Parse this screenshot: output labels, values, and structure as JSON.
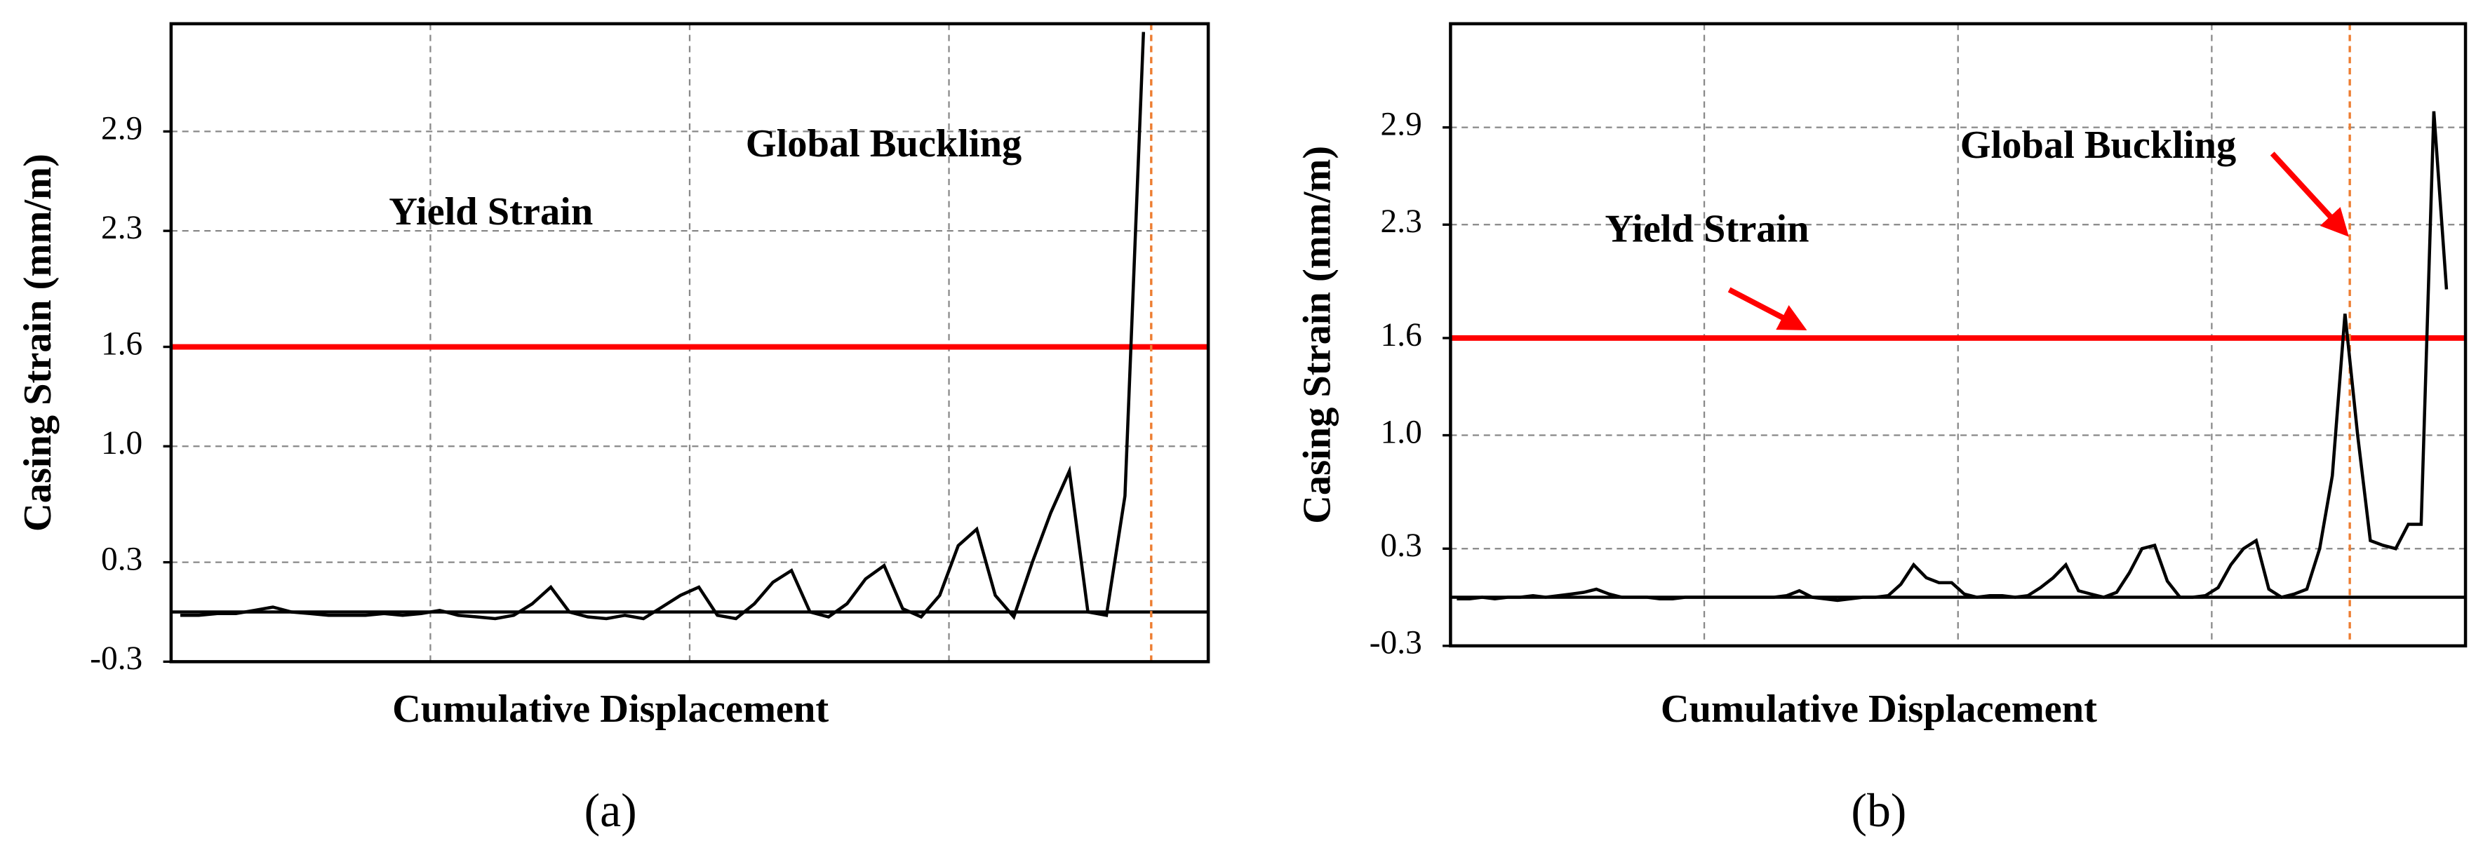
{
  "chart_data": [
    {
      "type": "line",
      "panel_label": "(a)",
      "y_label": "Casing Strain (mm/m)",
      "x_label": "Cumulative Displacement",
      "annotations": [
        {
          "text": "Yield Strain"
        },
        {
          "text": "Global Buckling"
        }
      ],
      "reference_lines": [
        {
          "value": 1.6,
          "color": "#ff0000"
        },
        {
          "value": 0,
          "color": "#000000"
        }
      ],
      "vline_color": "#ed7d31",
      "grid": true,
      "color": "#000000",
      "ylim": [
        -0.3,
        3.55
      ],
      "yticks": [
        -0.3,
        0.3,
        {
          "value": 1,
          "label": "1.0"
        },
        1.6,
        2.3,
        2.9
      ],
      "categories": [
        null,
        null,
        null,
        null,
        null,
        null,
        null,
        null,
        null,
        null,
        null,
        null,
        null,
        null,
        null,
        null,
        null,
        null,
        null,
        null,
        null,
        null,
        null,
        null,
        null,
        null,
        null,
        null,
        null,
        null,
        null,
        null,
        null,
        null,
        null,
        null,
        null,
        null,
        null,
        null,
        null,
        null,
        null,
        null,
        null,
        null,
        null,
        null,
        null,
        null,
        null,
        null,
        null,
        null,
        null,
        null
      ],
      "values": [
        -0.02,
        -0.02,
        -0.01,
        -0.01,
        0.01,
        0.03,
        0.0,
        -0.01,
        -0.02,
        -0.02,
        -0.02,
        -0.01,
        -0.02,
        -0.01,
        0.01,
        -0.02,
        -0.03,
        -0.04,
        -0.02,
        0.05,
        0.15,
        0.0,
        -0.03,
        -0.04,
        -0.02,
        -0.04,
        0.03,
        0.1,
        0.15,
        -0.02,
        -0.04,
        0.05,
        0.18,
        0.25,
        0.0,
        -0.03,
        0.05,
        0.2,
        0.28,
        0.02,
        -0.03,
        0.1,
        0.4,
        0.5,
        0.1,
        -0.03,
        0.3,
        0.6,
        0.85,
        0.0,
        -0.02,
        0.7,
        3.5,
        null,
        null,
        null
      ]
    },
    {
      "type": "line",
      "panel_label": "(b)",
      "y_label": "Casing Strain (mm/m)",
      "x_label": "Cumulative Displacement",
      "annotations": [
        {
          "text": "Yield Strain"
        },
        {
          "text": "Global Buckling"
        }
      ],
      "reference_lines": [
        {
          "value": 1.6,
          "color": "#ff0000"
        },
        {
          "value": 0,
          "color": "#000000"
        }
      ],
      "vline_color": "#ed7d31",
      "grid": true,
      "color": "#000000",
      "ylim": [
        -0.3,
        3.54
      ],
      "yticks": [
        -0.3,
        0.3,
        {
          "value": 1,
          "label": "1.0"
        },
        1.6,
        2.3,
        2.9
      ],
      "categories": [
        null,
        null,
        null,
        null,
        null,
        null,
        null,
        null,
        null,
        null,
        null,
        null,
        null,
        null,
        null,
        null,
        null,
        null,
        null,
        null,
        null,
        null,
        null,
        null,
        null,
        null,
        null,
        null,
        null,
        null,
        null,
        null,
        null,
        null,
        null,
        null,
        null,
        null,
        null,
        null,
        null,
        null,
        null,
        null,
        null,
        null,
        null,
        null,
        null,
        null,
        null,
        null,
        null,
        null,
        null,
        null,
        null,
        null,
        null,
        null,
        null,
        null,
        null,
        null,
        null,
        null,
        null,
        null,
        null,
        null,
        null,
        null,
        null,
        null,
        null,
        null,
        null,
        null,
        null,
        null
      ],
      "values": [
        -0.01,
        -0.01,
        0,
        -0.01,
        0,
        0,
        0.01,
        0,
        0.01,
        0.02,
        0.03,
        0.05,
        0.02,
        0.0,
        0.0,
        0.0,
        -0.01,
        -0.01,
        0,
        0,
        0,
        0,
        0,
        0,
        0,
        0,
        0.01,
        0.04,
        0.0,
        -0.01,
        -0.02,
        -0.01,
        0,
        0,
        0.01,
        0.08,
        0.2,
        0.12,
        0.09,
        0.09,
        0.02,
        0.0,
        0.01,
        0.01,
        0.0,
        0.01,
        0.06,
        0.12,
        0.2,
        0.04,
        0.02,
        0.0,
        0.03,
        0.15,
        0.3,
        0.32,
        0.1,
        0.0,
        0.0,
        0.01,
        0.06,
        0.2,
        0.3,
        0.35,
        0.05,
        0.0,
        0.02,
        0.05,
        0.3,
        0.75,
        1.75,
        1.0,
        0.35,
        0.32,
        0.3,
        0.45,
        0.45,
        3.0,
        1.9,
        null
      ]
    }
  ]
}
